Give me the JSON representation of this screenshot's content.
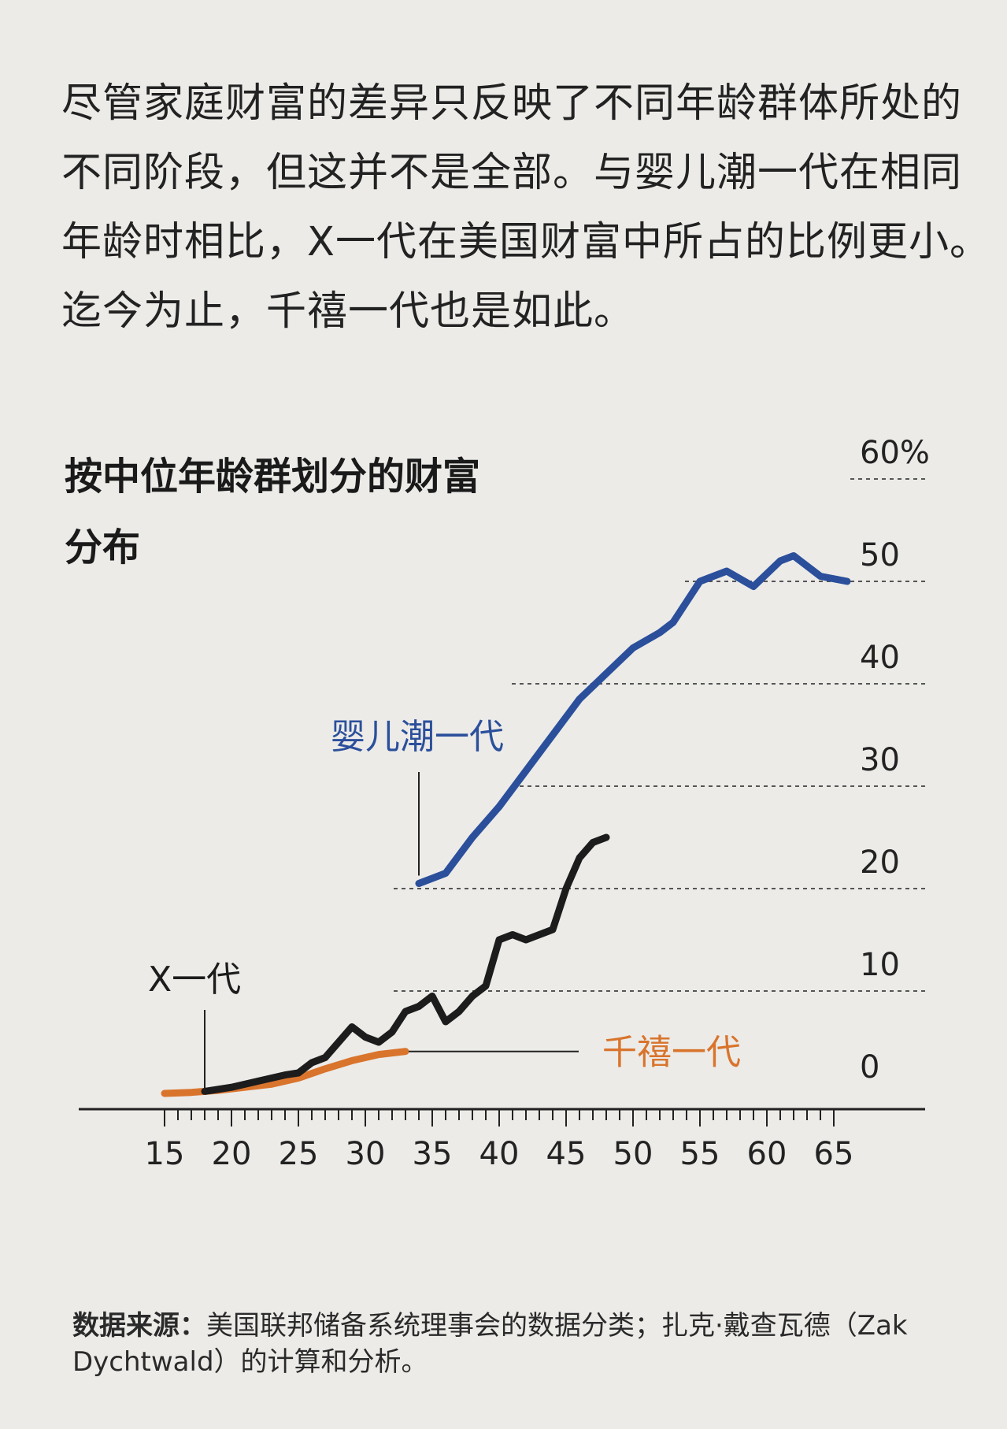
{
  "intro_text": "尽管家庭财富的差异只反映了不同年龄群体所处的不同阶段，但这并不是全部。与婴儿潮一代在相同年龄时相比，X一代在美国财富中所占的比例更小。迄今为止，千禧一代也是如此。",
  "source": {
    "label": "数据来源：",
    "text": "美国联邦储备系统理事会的数据分类；扎克·戴查瓦德（Zak Dychtwald）的计算和分析。"
  },
  "colors": {
    "boomers": "#2b4f9b",
    "genx": "#1c1c1c",
    "millennials": "#d9742c",
    "gridline": "#555555",
    "axis": "#222222"
  },
  "chart_data": {
    "type": "line",
    "title": "按中位年龄群划分的财富分布",
    "xlabel": "",
    "ylabel": "",
    "xlim": [
      12,
      65
    ],
    "ylim": [
      0,
      60
    ],
    "x_ticks": [
      "15",
      "20",
      "25",
      "30",
      "35",
      "40",
      "45",
      "50",
      "55",
      "60",
      "65"
    ],
    "y_ticks": [
      "0",
      "10",
      "20",
      "30",
      "40",
      "50",
      "60%"
    ],
    "grid": true,
    "series": [
      {
        "name": "婴儿潮一代",
        "color_key": "boomers",
        "x": [
          34,
          36,
          38,
          40,
          42,
          44,
          46,
          48,
          50,
          52,
          53,
          55,
          57,
          59,
          61,
          62,
          64,
          66
        ],
        "y": [
          20.5,
          21.5,
          25,
          28,
          31.5,
          35,
          38.5,
          41,
          43.5,
          45,
          46,
          50,
          51,
          49.5,
          52,
          52.5,
          50.5,
          50
        ]
      },
      {
        "name": "X一代",
        "color_key": "genx",
        "x": [
          18,
          20,
          22,
          24,
          25,
          26,
          27,
          28,
          29,
          30,
          31,
          32,
          33,
          34,
          35,
          36,
          37,
          38,
          39,
          40,
          41,
          42,
          43,
          44,
          45,
          46,
          47,
          48
        ],
        "y": [
          0.2,
          0.6,
          1.2,
          1.8,
          2.0,
          3.0,
          3.5,
          5.0,
          6.5,
          5.5,
          5.0,
          6.0,
          8.0,
          8.5,
          9.5,
          7.0,
          8.0,
          9.5,
          10.5,
          15.0,
          15.5,
          15.0,
          15.5,
          16.0,
          20.0,
          23.0,
          24.5,
          25.0
        ]
      },
      {
        "name": "千禧一代",
        "color_key": "millennials",
        "x": [
          15,
          17,
          19,
          21,
          23,
          25,
          27,
          29,
          31,
          33
        ],
        "y": [
          0,
          0.1,
          0.3,
          0.6,
          0.9,
          1.5,
          2.4,
          3.2,
          3.8,
          4.1
        ]
      }
    ]
  }
}
